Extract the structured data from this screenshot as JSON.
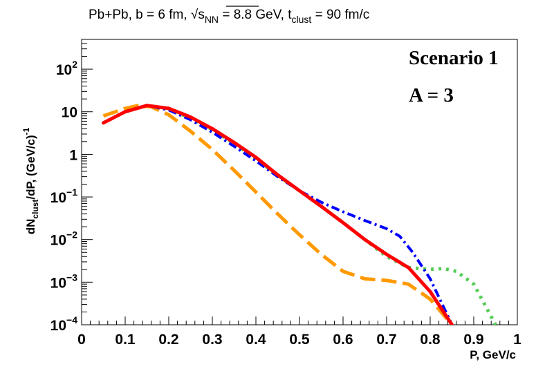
{
  "chart_data": {
    "type": "line",
    "title": {
      "prefix": "Pb+Pb, b = 6 fm, ",
      "sqrt_symbol": "√",
      "s_main": "s",
      "s_sub": "NN",
      "middle": " = 8.8 GeV, t",
      "t_sub": "clust",
      "suffix": " = 90 fm/c"
    },
    "xlabel": "P, GeV/c",
    "ylabel": {
      "part1": "dN",
      "sub": "clust",
      "part2": "/dP, (GeV/c)",
      "sup": "-1"
    },
    "xlim": [
      0,
      1
    ],
    "ylim": [
      0.0001,
      500
    ],
    "yscale": "log",
    "x_ticks": [
      {
        "value": 0,
        "label": "0"
      },
      {
        "value": 0.1,
        "label": "0.1"
      },
      {
        "value": 0.2,
        "label": "0.2"
      },
      {
        "value": 0.3,
        "label": "0.3"
      },
      {
        "value": 0.4,
        "label": "0.4"
      },
      {
        "value": 0.5,
        "label": "0.5"
      },
      {
        "value": 0.6,
        "label": "0.6"
      },
      {
        "value": 0.7,
        "label": "0.7"
      },
      {
        "value": 0.8,
        "label": "0.8"
      },
      {
        "value": 0.9,
        "label": "0.9"
      },
      {
        "value": 1,
        "label": "1"
      }
    ],
    "y_ticks": [
      {
        "value": 100,
        "base": "10",
        "exp": "2"
      },
      {
        "value": 10,
        "base": "10",
        "exp": ""
      },
      {
        "value": 1,
        "base": "1",
        "exp": ""
      },
      {
        "value": 0.1,
        "base": "10",
        "exp": "−1"
      },
      {
        "value": 0.01,
        "base": "10",
        "exp": "−2"
      },
      {
        "value": 0.001,
        "base": "10",
        "exp": "−3"
      },
      {
        "value": 0.0001,
        "base": "10",
        "exp": "−4"
      }
    ],
    "annotations": [
      "Scenario 1",
      "A = 3"
    ],
    "series": [
      {
        "name": "red-solid",
        "color": "#ff0000",
        "style": "solid",
        "x": [
          0.05,
          0.1,
          0.15,
          0.2,
          0.25,
          0.3,
          0.35,
          0.4,
          0.45,
          0.5,
          0.55,
          0.6,
          0.65,
          0.7,
          0.75,
          0.8,
          0.85
        ],
        "y": [
          5.5,
          10,
          14,
          12,
          7.5,
          4,
          1.9,
          0.85,
          0.33,
          0.14,
          0.06,
          0.025,
          0.01,
          0.0045,
          0.0022,
          0.0006,
          0.0001
        ]
      },
      {
        "name": "green-dotted",
        "color": "#55cc55",
        "style": "dotted",
        "x": [
          0.05,
          0.1,
          0.15,
          0.2,
          0.25,
          0.3,
          0.35,
          0.4,
          0.45,
          0.5,
          0.55,
          0.6,
          0.65,
          0.7,
          0.75,
          0.8,
          0.83,
          0.86,
          0.9,
          0.95
        ],
        "y": [
          5.5,
          10,
          14,
          12,
          7,
          3.8,
          1.8,
          0.8,
          0.32,
          0.14,
          0.06,
          0.025,
          0.01,
          0.004,
          0.0022,
          0.002,
          0.0021,
          0.0018,
          0.0009,
          0.0001
        ]
      },
      {
        "name": "blue-dash-dot",
        "color": "#0000ff",
        "style": "dashdot",
        "x": [
          0.05,
          0.1,
          0.15,
          0.2,
          0.25,
          0.3,
          0.35,
          0.4,
          0.45,
          0.5,
          0.55,
          0.6,
          0.65,
          0.7,
          0.73,
          0.76,
          0.8,
          0.85
        ],
        "y": [
          5.5,
          10,
          14,
          11,
          6.5,
          3.3,
          1.55,
          0.7,
          0.3,
          0.14,
          0.075,
          0.045,
          0.028,
          0.018,
          0.012,
          0.005,
          0.0012,
          0.0001
        ]
      },
      {
        "name": "orange-dashed",
        "color": "#ff9900",
        "style": "dashed",
        "x": [
          0.05,
          0.1,
          0.13,
          0.16,
          0.2,
          0.25,
          0.3,
          0.35,
          0.4,
          0.45,
          0.5,
          0.55,
          0.6,
          0.65,
          0.7,
          0.75,
          0.8,
          0.85
        ],
        "y": [
          8,
          12,
          14,
          13,
          8.5,
          3.5,
          1.3,
          0.42,
          0.13,
          0.04,
          0.013,
          0.0045,
          0.0018,
          0.0012,
          0.0011,
          0.0009,
          0.0004,
          0.0001
        ]
      }
    ]
  }
}
